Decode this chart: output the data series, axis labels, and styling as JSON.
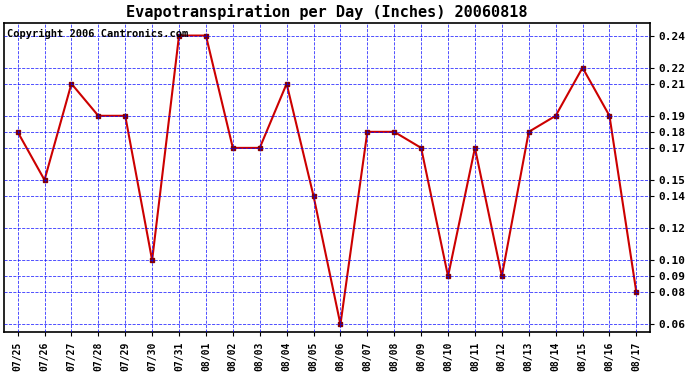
{
  "title": "Evapotranspiration per Day (Inches) 20060818",
  "copyright": "Copyright 2006 Cantronics.com",
  "dates": [
    "07/25",
    "07/26",
    "07/27",
    "07/28",
    "07/29",
    "07/30",
    "07/31",
    "08/01",
    "08/02",
    "08/03",
    "08/04",
    "08/05",
    "08/06",
    "08/07",
    "08/08",
    "08/09",
    "08/10",
    "08/11",
    "08/12",
    "08/13",
    "08/14",
    "08/15",
    "08/16",
    "08/17"
  ],
  "values": [
    0.18,
    0.15,
    0.21,
    0.19,
    0.19,
    0.1,
    0.24,
    0.24,
    0.17,
    0.17,
    0.21,
    0.14,
    0.06,
    0.18,
    0.18,
    0.17,
    0.09,
    0.17,
    0.09,
    0.18,
    0.19,
    0.22,
    0.19,
    0.08
  ],
  "yticks": [
    0.06,
    0.08,
    0.09,
    0.1,
    0.12,
    0.14,
    0.15,
    0.17,
    0.18,
    0.19,
    0.21,
    0.22,
    0.24
  ],
  "line_color": "#cc0000",
  "marker_color": "#880000",
  "bg_color": "#ffffff",
  "title_fontsize": 11,
  "copyright_fontsize": 7.5
}
